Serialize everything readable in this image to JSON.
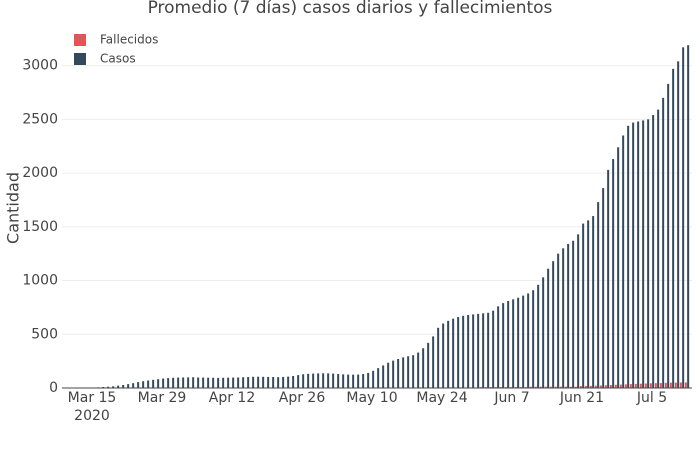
{
  "chart_data": {
    "type": "bar",
    "title": "Promedio (7 días) casos diarios y fallecimientos",
    "y_label": "Cantidad",
    "x": [
      "2020-03-10",
      "2020-03-11",
      "2020-03-12",
      "2020-03-13",
      "2020-03-14",
      "2020-03-15",
      "2020-03-16",
      "2020-03-17",
      "2020-03-18",
      "2020-03-19",
      "2020-03-20",
      "2020-03-21",
      "2020-03-22",
      "2020-03-23",
      "2020-03-24",
      "2020-03-25",
      "2020-03-26",
      "2020-03-27",
      "2020-03-28",
      "2020-03-29",
      "2020-03-30",
      "2020-03-31",
      "2020-04-01",
      "2020-04-02",
      "2020-04-03",
      "2020-04-04",
      "2020-04-05",
      "2020-04-06",
      "2020-04-07",
      "2020-04-08",
      "2020-04-09",
      "2020-04-10",
      "2020-04-11",
      "2020-04-12",
      "2020-04-13",
      "2020-04-14",
      "2020-04-15",
      "2020-04-16",
      "2020-04-17",
      "2020-04-18",
      "2020-04-19",
      "2020-04-20",
      "2020-04-21",
      "2020-04-22",
      "2020-04-23",
      "2020-04-24",
      "2020-04-25",
      "2020-04-26",
      "2020-04-27",
      "2020-04-28",
      "2020-04-29",
      "2020-04-30",
      "2020-05-01",
      "2020-05-02",
      "2020-05-03",
      "2020-05-04",
      "2020-05-05",
      "2020-05-06",
      "2020-05-07",
      "2020-05-08",
      "2020-05-09",
      "2020-05-10",
      "2020-05-11",
      "2020-05-12",
      "2020-05-13",
      "2020-05-14",
      "2020-05-15",
      "2020-05-16",
      "2020-05-17",
      "2020-05-18",
      "2020-05-19",
      "2020-05-20",
      "2020-05-21",
      "2020-05-22",
      "2020-05-23",
      "2020-05-24",
      "2020-05-25",
      "2020-05-26",
      "2020-05-27",
      "2020-05-28",
      "2020-05-29",
      "2020-05-30",
      "2020-05-31",
      "2020-06-01",
      "2020-06-02",
      "2020-06-03",
      "2020-06-04",
      "2020-06-05",
      "2020-06-06",
      "2020-06-07",
      "2020-06-08",
      "2020-06-09",
      "2020-06-10",
      "2020-06-11",
      "2020-06-12",
      "2020-06-13",
      "2020-06-14",
      "2020-06-15",
      "2020-06-16",
      "2020-06-17",
      "2020-06-18",
      "2020-06-19",
      "2020-06-20",
      "2020-06-21",
      "2020-06-22",
      "2020-06-23",
      "2020-06-24",
      "2020-06-25",
      "2020-06-26",
      "2020-06-27",
      "2020-06-28",
      "2020-06-29",
      "2020-06-30",
      "2020-07-01",
      "2020-07-02",
      "2020-07-03",
      "2020-07-04",
      "2020-07-05",
      "2020-07-06",
      "2020-07-07",
      "2020-07-08",
      "2020-07-09",
      "2020-07-10",
      "2020-07-11",
      "2020-07-12"
    ],
    "series": [
      {
        "name": "Fallecidos",
        "color": "#e15759",
        "values": [
          0,
          0,
          0,
          0,
          0,
          0,
          0,
          0,
          0,
          0,
          0,
          1,
          1,
          1,
          1,
          1,
          2,
          2,
          2,
          2,
          2,
          2,
          3,
          3,
          3,
          3,
          3,
          3,
          3,
          3,
          3,
          3,
          3,
          3,
          3,
          3,
          3,
          3,
          3,
          3,
          3,
          3,
          3,
          3,
          3,
          3,
          3,
          3,
          3,
          3,
          3,
          3,
          3,
          3,
          3,
          3,
          3,
          3,
          3,
          3,
          3,
          3,
          3,
          3,
          3,
          3,
          3,
          3,
          3,
          3,
          3,
          3,
          5,
          5,
          5,
          5,
          5,
          5,
          5,
          5,
          5,
          5,
          5,
          8,
          8,
          8,
          8,
          8,
          8,
          8,
          8,
          8,
          8,
          12,
          12,
          12,
          12,
          12,
          12,
          12,
          12,
          12,
          12,
          18,
          19,
          20,
          22,
          24,
          26,
          28,
          30,
          32,
          34,
          36,
          38,
          40,
          42,
          44,
          45,
          46,
          48,
          50,
          50,
          51,
          52
        ]
      },
      {
        "name": "Casos",
        "color": "#34495e",
        "values": [
          1,
          1,
          2,
          2,
          3,
          4,
          6,
          9,
          12,
          16,
          22,
          28,
          36,
          45,
          55,
          63,
          70,
          76,
          82,
          88,
          92,
          95,
          97,
          98,
          99,
          100,
          98,
          97,
          96,
          95,
          94,
          95,
          96,
          97,
          98,
          100,
          102,
          104,
          105,
          104,
          103,
          102,
          101,
          103,
          106,
          112,
          120,
          128,
          132,
          134,
          136,
          137,
          136,
          134,
          130,
          127,
          125,
          124,
          125,
          130,
          140,
          160,
          185,
          210,
          235,
          255,
          270,
          285,
          295,
          305,
          330,
          370,
          420,
          480,
          560,
          600,
          625,
          645,
          660,
          672,
          680,
          685,
          690,
          695,
          700,
          720,
          760,
          790,
          810,
          825,
          840,
          860,
          880,
          910,
          960,
          1030,
          1110,
          1180,
          1250,
          1300,
          1340,
          1370,
          1430,
          1530,
          1560,
          1600,
          1730,
          1860,
          2030,
          2130,
          2240,
          2350,
          2440,
          2470,
          2480,
          2490,
          2500,
          2540,
          2590,
          2700,
          2830,
          2970,
          3040,
          3170,
          3190
        ]
      }
    ],
    "xlim": [
      "2020-03-09",
      "2020-07-13"
    ],
    "xticks": [
      {
        "value": "2020-03-15",
        "label": "Mar 15\n2020"
      },
      {
        "value": "2020-03-29",
        "label": "Mar 29"
      },
      {
        "value": "2020-04-12",
        "label": "Apr 12"
      },
      {
        "value": "2020-04-26",
        "label": "Apr 26"
      },
      {
        "value": "2020-05-10",
        "label": "May 10"
      },
      {
        "value": "2020-05-24",
        "label": "May 24"
      },
      {
        "value": "2020-06-07",
        "label": "Jun 7"
      },
      {
        "value": "2020-06-21",
        "label": "Jun 21"
      },
      {
        "value": "2020-07-05",
        "label": "Jul 5"
      }
    ],
    "ylim": [
      0,
      3350
    ],
    "yticks": [
      0,
      500,
      1000,
      1500,
      2000,
      2500,
      3000
    ],
    "grid": true,
    "legend": "top-left"
  }
}
